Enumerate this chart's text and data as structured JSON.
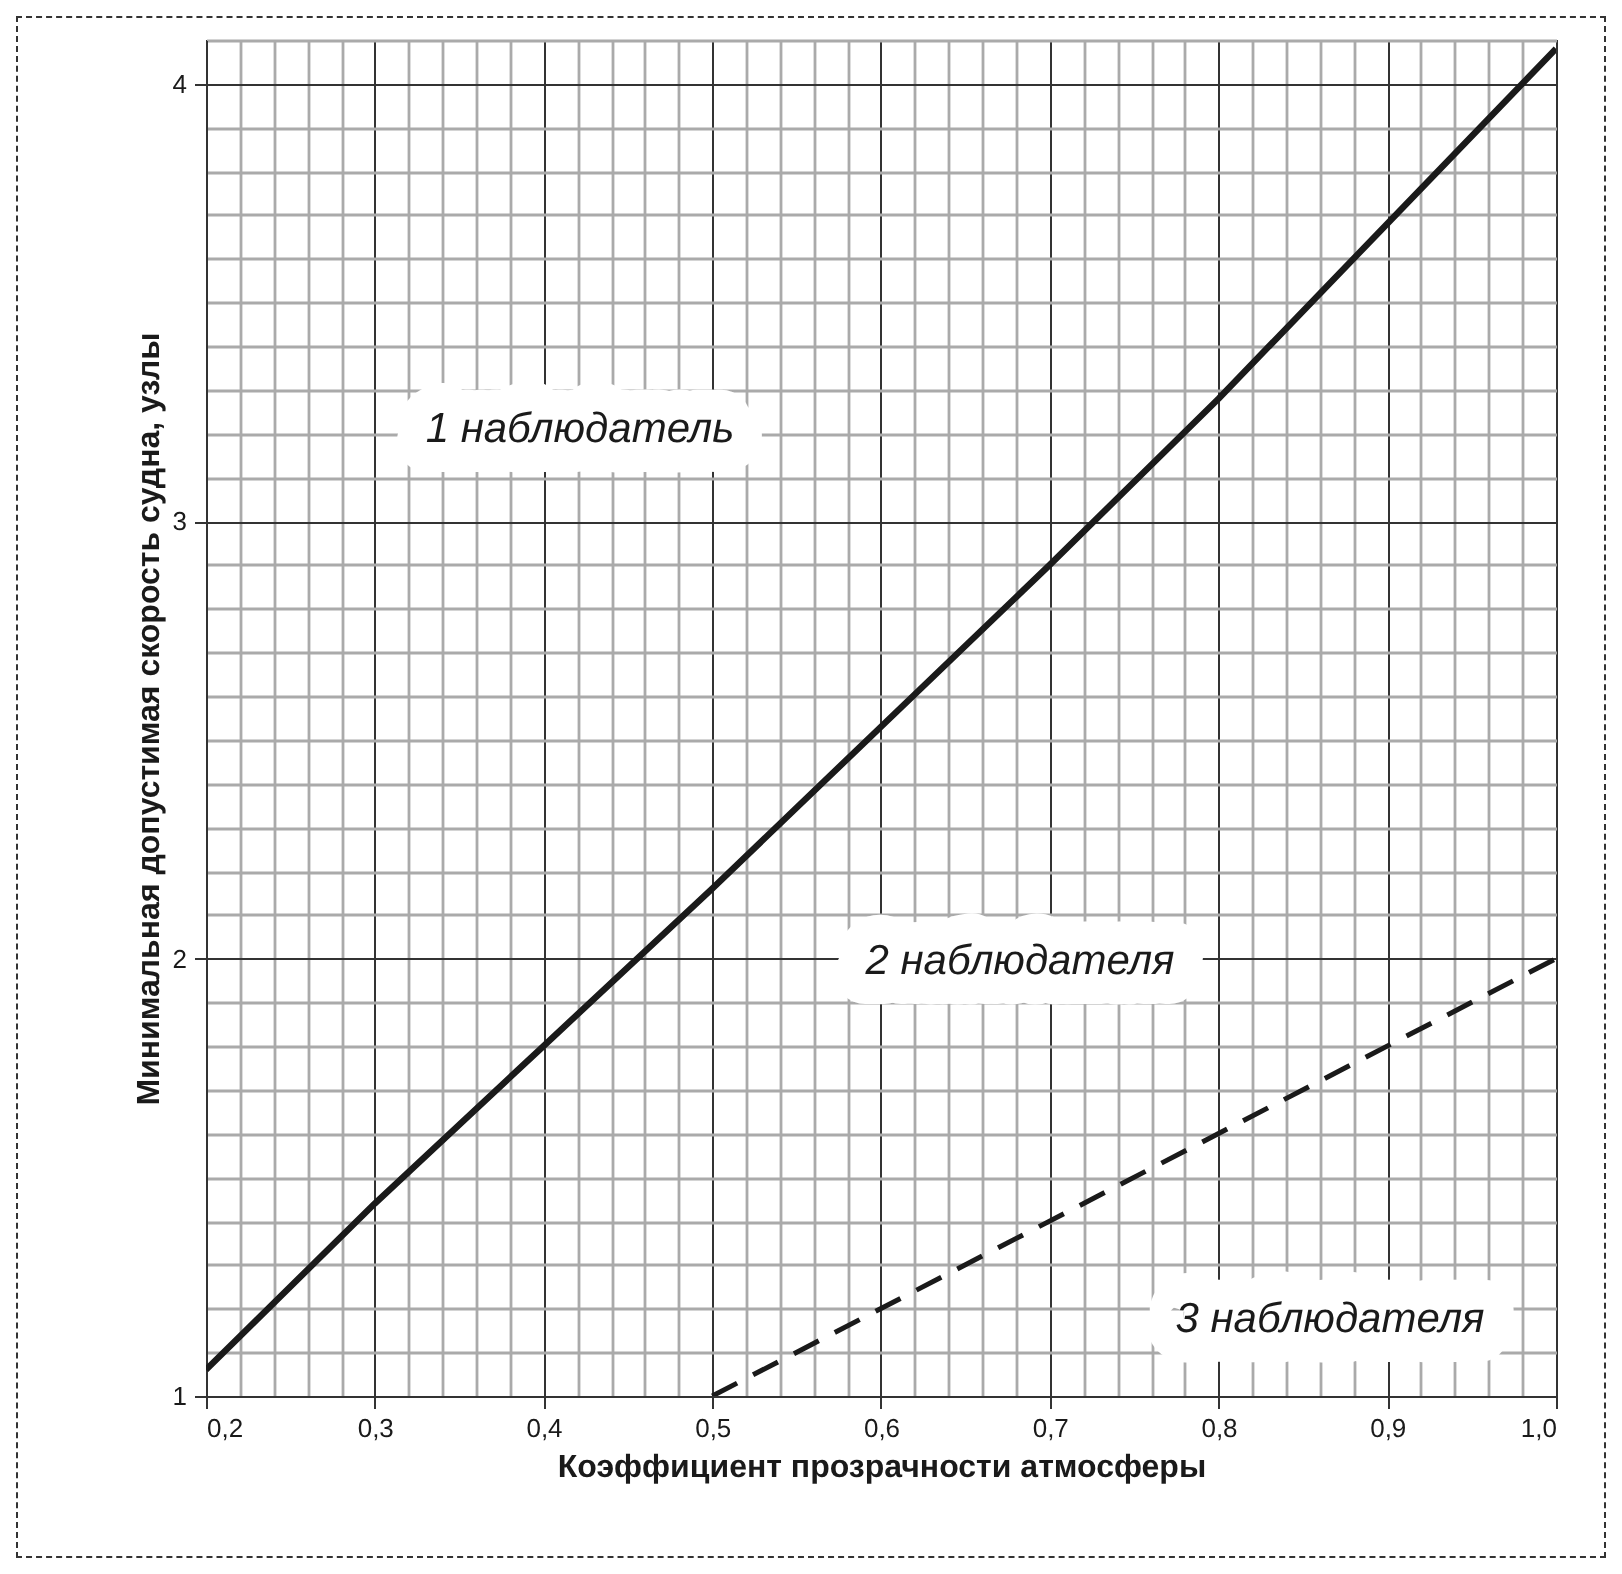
{
  "chart_data": {
    "type": "line",
    "xlabel": "Коэффициент прозрачности атмосферы",
    "ylabel": "Минимальная допустимая скорость судна, узлы",
    "series": [
      {
        "color": "#1a1a1a",
        "line_style": "solid",
        "x": [
          0.2,
          0.3,
          0.4,
          0.5,
          0.6,
          0.7,
          0.8,
          0.9,
          1.0
        ],
        "values": [
          1.06,
          1.44,
          1.8,
          2.16,
          2.53,
          2.9,
          3.28,
          3.68,
          4.08
        ]
      },
      {
        "color": "#1a1a1a",
        "line_style": "dashed",
        "x": [
          0.5,
          1.0
        ],
        "values": [
          1.0,
          2.0
        ]
      }
    ],
    "annotations": [
      "1 наблюдатель",
      "2 наблюдателя",
      "3 наблюдателя"
    ],
    "xlim": [
      0.2,
      1.0
    ],
    "ylim": [
      1,
      4.1
    ],
    "xticks": [
      {
        "value": 0.2,
        "label": "0,2"
      },
      {
        "value": 0.22,
        "label": null
      },
      {
        "value": 0.24,
        "label": null
      },
      {
        "value": 0.26,
        "label": null
      },
      {
        "value": 0.28,
        "label": null
      },
      {
        "value": 0.3,
        "label": "0,3"
      },
      {
        "value": 0.32,
        "label": null
      },
      {
        "value": 0.34,
        "label": null
      },
      {
        "value": 0.36,
        "label": null
      },
      {
        "value": 0.38,
        "label": null
      },
      {
        "value": 0.4,
        "label": "0,4"
      },
      {
        "value": 0.42,
        "label": null
      },
      {
        "value": 0.44,
        "label": null
      },
      {
        "value": 0.46,
        "label": null
      },
      {
        "value": 0.48,
        "label": null
      },
      {
        "value": 0.5,
        "label": "0,5"
      },
      {
        "value": 0.52,
        "label": null
      },
      {
        "value": 0.54,
        "label": null
      },
      {
        "value": 0.56,
        "label": null
      },
      {
        "value": 0.58,
        "label": null
      },
      {
        "value": 0.6,
        "label": "0,6"
      },
      {
        "value": 0.62,
        "label": null
      },
      {
        "value": 0.64,
        "label": null
      },
      {
        "value": 0.66,
        "label": null
      },
      {
        "value": 0.68,
        "label": null
      },
      {
        "value": 0.7,
        "label": "0,7"
      },
      {
        "value": 0.72,
        "label": null
      },
      {
        "value": 0.74,
        "label": null
      },
      {
        "value": 0.76,
        "label": null
      },
      {
        "value": 0.78,
        "label": null
      },
      {
        "value": 0.8,
        "label": "0,8"
      },
      {
        "value": 0.82,
        "label": null
      },
      {
        "value": 0.84,
        "label": null
      },
      {
        "value": 0.86,
        "label": null
      },
      {
        "value": 0.88,
        "label": null
      },
      {
        "value": 0.9,
        "label": "0,9"
      },
      {
        "value": 0.92,
        "label": null
      },
      {
        "value": 0.94,
        "label": null
      },
      {
        "value": 0.96,
        "label": null
      },
      {
        "value": 0.98,
        "label": null
      },
      {
        "value": 1.0,
        "label": "1,0"
      }
    ],
    "yticks": [
      1,
      {
        "value": 1.1,
        "label": null
      },
      {
        "value": 1.2,
        "label": null
      },
      {
        "value": 1.3,
        "label": null
      },
      {
        "value": 1.4,
        "label": null
      },
      {
        "value": 1.5,
        "label": null
      },
      {
        "value": 1.6,
        "label": null
      },
      {
        "value": 1.7,
        "label": null
      },
      {
        "value": 1.8,
        "label": null
      },
      {
        "value": 1.9,
        "label": null
      },
      2,
      {
        "value": 2.1,
        "label": null
      },
      {
        "value": 2.2,
        "label": null
      },
      {
        "value": 2.3,
        "label": null
      },
      {
        "value": 2.4,
        "label": null
      },
      {
        "value": 2.5,
        "label": null
      },
      {
        "value": 2.6,
        "label": null
      },
      {
        "value": 2.7,
        "label": null
      },
      {
        "value": 2.8,
        "label": null
      },
      {
        "value": 2.9,
        "label": null
      },
      3,
      {
        "value": 3.1,
        "label": null
      },
      {
        "value": 3.2,
        "label": null
      },
      {
        "value": 3.3,
        "label": null
      },
      {
        "value": 3.4,
        "label": null
      },
      {
        "value": 3.5,
        "label": null
      },
      {
        "value": 3.6,
        "label": null
      },
      {
        "value": 3.7,
        "label": null
      },
      {
        "value": 3.8,
        "label": null
      },
      {
        "value": 3.9,
        "label": null
      },
      4,
      {
        "value": 4.1,
        "label": null
      }
    ],
    "grid": true,
    "marker": "none"
  }
}
